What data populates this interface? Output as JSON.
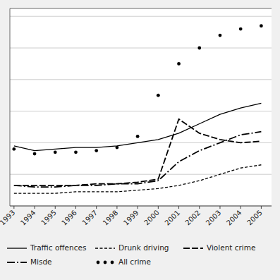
{
  "chart_data": {
    "type": "line",
    "x": [
      1993,
      1994,
      1995,
      1996,
      1997,
      1998,
      1999,
      2000,
      2001,
      2002,
      2003,
      2004,
      2005
    ],
    "series": [
      {
        "name": "Traffic offences",
        "color": "#000000",
        "line_style": "solid",
        "values": [
          0.38,
          0.35,
          0.36,
          0.37,
          0.37,
          0.38,
          0.4,
          0.42,
          0.46,
          0.52,
          0.58,
          0.62,
          0.65
        ]
      },
      {
        "name": "Drunk driving",
        "color": "#000000",
        "line_style": "dashed",
        "values": [
          0.08,
          0.08,
          0.08,
          0.09,
          0.09,
          0.09,
          0.1,
          0.11,
          0.13,
          0.16,
          0.2,
          0.24,
          0.26
        ]
      },
      {
        "name": "Violent crime",
        "color": "#000000",
        "line_style": "longdash",
        "values": [
          0.13,
          0.13,
          0.13,
          0.13,
          0.14,
          0.14,
          0.15,
          0.17,
          0.55,
          0.46,
          0.42,
          0.4,
          0.41
        ]
      },
      {
        "name": "Misde",
        "color": "#000000",
        "line_style": "dashdot",
        "values": [
          0.13,
          0.12,
          0.12,
          0.13,
          0.13,
          0.14,
          0.14,
          0.16,
          0.28,
          0.35,
          0.4,
          0.45,
          0.47
        ]
      },
      {
        "name": "All crime",
        "color": "#000000",
        "line_style": "none",
        "marker": "dot",
        "values": [
          0.36,
          0.33,
          0.34,
          0.34,
          0.35,
          0.37,
          0.44,
          0.7,
          0.9,
          1.0,
          1.08,
          1.12,
          1.14
        ]
      }
    ],
    "xlim": [
      1992.8,
      2005.5
    ],
    "xticks": [
      1993,
      1994,
      1995,
      1996,
      1997,
      1998,
      1999,
      2000,
      2001,
      2002,
      2003,
      2004,
      2005
    ],
    "ylim": [
      0.0,
      1.25
    ],
    "yticks": [
      0,
      0.2,
      0.4,
      0.6,
      0.8,
      1.0,
      1.2
    ],
    "grid": true,
    "tick_labels": "x",
    "legend": "bottom"
  }
}
